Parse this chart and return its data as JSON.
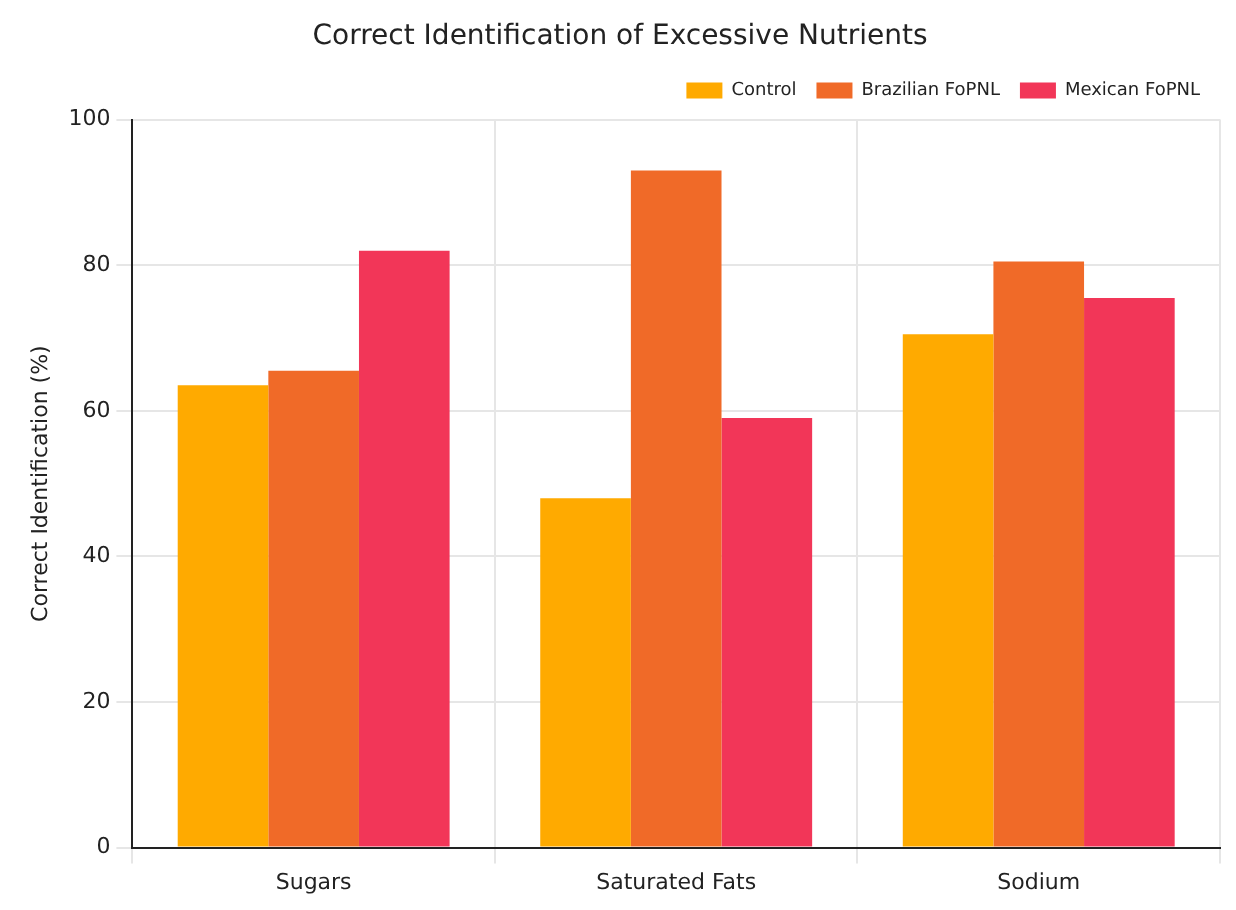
{
  "chart_data": {
    "type": "bar",
    "title": "Correct Identification of Excessive Nutrients",
    "ylabel": "Correct Identification (%)",
    "categories": [
      "Sugars",
      "Saturated Fats",
      "Sodium"
    ],
    "series": [
      {
        "name": "Control",
        "color": "#ffaa00",
        "values": [
          63.5,
          48,
          70.5
        ]
      },
      {
        "name": "Brazilian FoPNL",
        "color": "#f06a28",
        "values": [
          65.5,
          93,
          80.5
        ]
      },
      {
        "name": "Mexican FoPNL",
        "color": "#f23658",
        "values": [
          82,
          59,
          75.5
        ]
      }
    ],
    "ylim": [
      0,
      100
    ],
    "yticks": [
      0,
      20,
      40,
      60,
      80,
      100
    ],
    "grid": true,
    "legend": "top right"
  }
}
